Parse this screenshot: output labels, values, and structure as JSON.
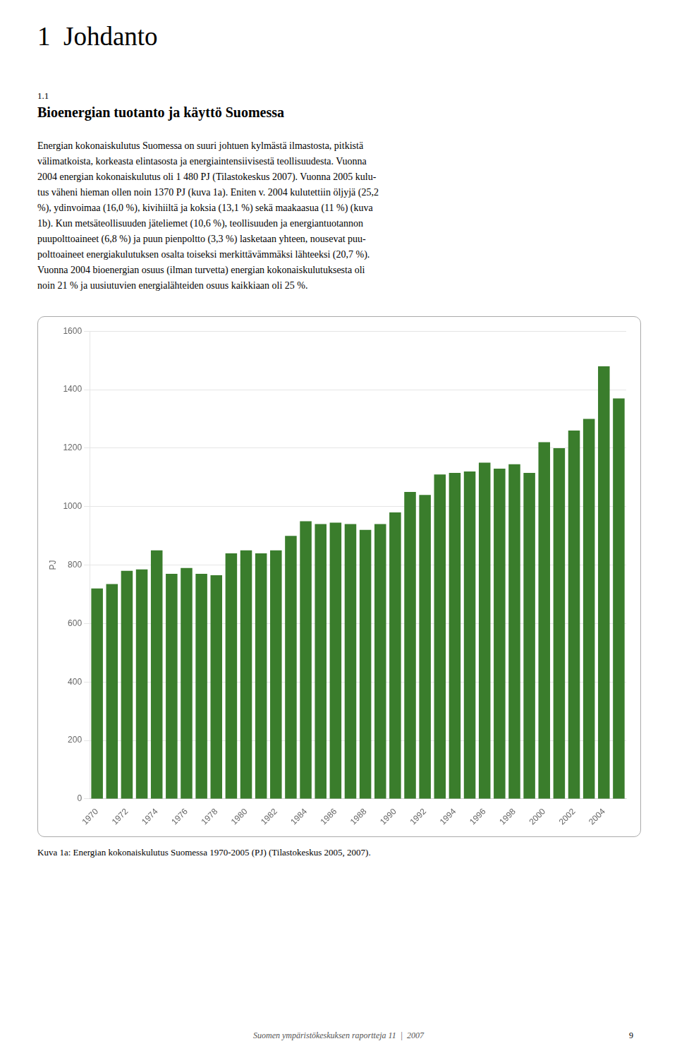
{
  "chart_data": {
    "type": "bar",
    "title": "1  Johdanto",
    "subtitle": "Bioenergian tuotanto ja käyttö Suomessa",
    "ylabel": "PJ",
    "categories": [
      "1970",
      null,
      "1972",
      null,
      "1974",
      null,
      "1976",
      null,
      "1978",
      null,
      "1980",
      null,
      "1982",
      null,
      "1984",
      null,
      "1986",
      null,
      "1988",
      null,
      "1990",
      null,
      "1992",
      null,
      "1994",
      null,
      "1996",
      null,
      "1998",
      null,
      "2000",
      null,
      "2002",
      null,
      "2004",
      null
    ],
    "values": [
      720,
      735,
      780,
      785,
      850,
      770,
      790,
      770,
      765,
      840,
      850,
      840,
      850,
      900,
      950,
      940,
      945,
      940,
      920,
      940,
      980,
      1050,
      1040,
      1110,
      1115,
      1120,
      1150,
      1130,
      1145,
      1115,
      1220,
      1200,
      1260,
      1300,
      1480,
      1370
    ],
    "color": "#3a7d2c",
    "ylim": [
      0,
      1600
    ],
    "yticks": [
      0,
      200,
      400,
      600,
      800,
      1000,
      1200,
      1400,
      1600
    ],
    "grid": true,
    "annotations": [
      "1.1",
      "Energian kokonaiskulutus Suomessa on suuri johtuen kylmästä ilmastosta, pitkistä\nvälimatkoista, korkeasta elintasosta ja energiaintensiivisestä teollisuudesta. Vuonna\n2004 energian kokonaiskulutus oli 1 480 PJ (Tilastokeskus 2007). Vuonna 2005 kulu-\ntus väheni hieman ollen noin 1370 PJ (kuva 1a). Eniten v. 2004 kulutettiin öljyjä (25,2\n%), ydinvoimaa (16,0 %), kivihiiltä ja koksia (13,1 %) sekä maakaasua (11 %) (kuva\n1b). Kun metsäteollisuuden jäteliemet (10,6 %), teollisuuden ja energiantuotannon\npuupolttoaineet (6,8 %) ja puun pienpoltto (3,3 %) lasketaan yhteen, nousevat puu-\npolttoaineet energiakulutuksen osalta toiseksi merkittävämmäksi lähteeksi (20,7 %).\nVuonna 2004 bioenergian osuus (ilman turvetta) energian kokonaiskulutuksesta oli\nnoin 21 % ja uusiutuvien energialähteiden osuus kaikkiaan oli 25 %.",
      "Kuva 1a: Energian kokonaiskulutus Suomessa 1970-2005 (PJ) (Tilastokeskus 2005, 2007).",
      "Suomen ympäristökeskuksen raportteja 11  |  2007",
      "9"
    ]
  }
}
